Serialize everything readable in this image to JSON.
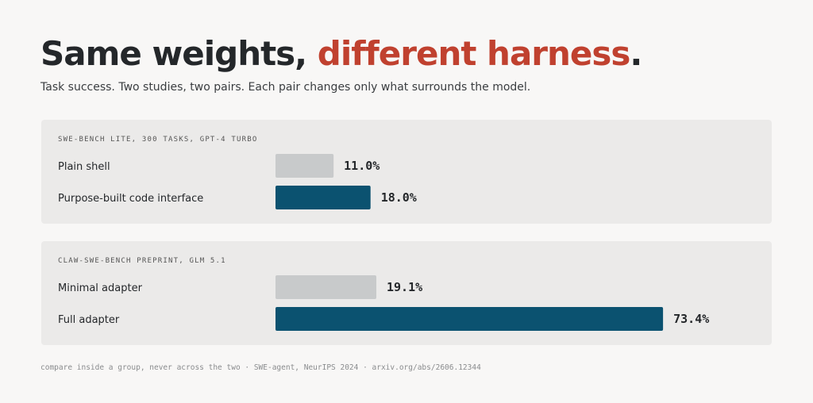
{
  "header": {
    "title_parts": [
      "Same weights, ",
      "different harness",
      "."
    ],
    "subtitle": "Task success. Two studies, two pairs. Each pair changes only what surrounds the model."
  },
  "chart_data": [
    {
      "type": "bar",
      "orientation": "horizontal",
      "title": "SWE-BENCH LITE, 300 TASKS, GPT-4 TURBO",
      "categories": [
        "Plain shell",
        "Purpose-built code interface"
      ],
      "values": [
        11.0,
        18.0
      ],
      "value_labels": [
        "11.0%",
        "18.0%"
      ],
      "colors": [
        "#c8cacb",
        "#0b5270"
      ],
      "xlim": [
        0,
        80
      ]
    },
    {
      "type": "bar",
      "orientation": "horizontal",
      "title": "CLAW-SWE-BENCH PREPRINT, GLM 5.1",
      "categories": [
        "Minimal adapter",
        "Full adapter"
      ],
      "values": [
        19.1,
        73.4
      ],
      "value_labels": [
        "19.1%",
        "73.4%"
      ],
      "colors": [
        "#c8cacb",
        "#0b5270"
      ],
      "xlim": [
        0,
        80
      ]
    }
  ],
  "footer": "compare inside a group, never across the two · SWE-agent, NeurIPS 2024 · arxiv.org/abs/2606.12344"
}
